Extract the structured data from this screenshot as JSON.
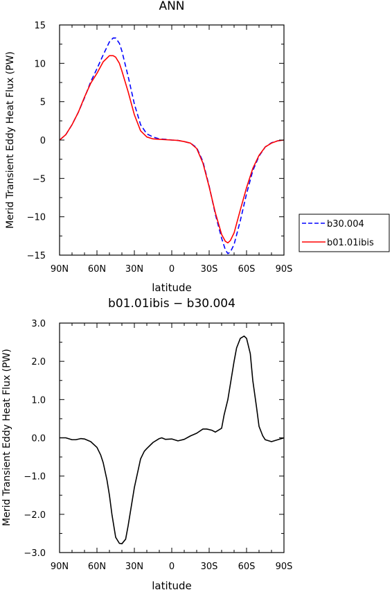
{
  "chart_data": [
    {
      "type": "line",
      "title": "ANN",
      "xlabel": "latitude",
      "ylabel": "Merid Transient Eddy Heat Flux (PW)",
      "xlim": [
        90,
        -90
      ],
      "ylim": [
        -15,
        15
      ],
      "xticks": [
        90,
        60,
        30,
        0,
        -30,
        -60,
        -90
      ],
      "xtick_labels": [
        "90N",
        "60N",
        "30N",
        "0",
        "30S",
        "60S",
        "90S"
      ],
      "yticks": [
        -15,
        -10,
        -5,
        0,
        5,
        10,
        15
      ],
      "ytick_labels": [
        "−15",
        "−10",
        "−5",
        "0",
        "5",
        "10",
        "15"
      ],
      "legend_position": "outside-right",
      "x": [
        90,
        85,
        80,
        75,
        70,
        65,
        60,
        55,
        50,
        47,
        45,
        42,
        40,
        35,
        30,
        25,
        20,
        15,
        10,
        5,
        0,
        -5,
        -10,
        -15,
        -20,
        -25,
        -30,
        -35,
        -40,
        -43,
        -45,
        -47,
        -50,
        -55,
        -60,
        -65,
        -70,
        -75,
        -80,
        -85,
        -90
      ],
      "series": [
        {
          "name": "b30.004",
          "color": "#0000ff",
          "dash": "dashed",
          "values": [
            0.0,
            0.7,
            2.0,
            3.6,
            5.5,
            7.6,
            9.3,
            11.1,
            12.8,
            13.3,
            13.3,
            12.6,
            11.6,
            8.3,
            4.7,
            2.0,
            0.8,
            0.4,
            0.15,
            0.1,
            0.0,
            -0.05,
            -0.2,
            -0.4,
            -1.0,
            -2.8,
            -6.0,
            -9.7,
            -12.8,
            -14.3,
            -14.8,
            -14.6,
            -13.6,
            -10.5,
            -7.0,
            -4.0,
            -2.1,
            -0.9,
            -0.35,
            -0.1,
            0.0
          ]
        },
        {
          "name": "b01.01ibis",
          "color": "#ff0000",
          "dash": "solid",
          "values": [
            0.0,
            0.7,
            2.0,
            3.6,
            5.6,
            7.4,
            8.7,
            10.2,
            11.0,
            11.0,
            10.8,
            10.0,
            9.0,
            6.3,
            3.3,
            1.2,
            0.4,
            0.15,
            0.1,
            0.05,
            0.0,
            -0.05,
            -0.2,
            -0.4,
            -1.1,
            -3.0,
            -6.1,
            -9.5,
            -12.3,
            -13.2,
            -13.4,
            -13.1,
            -12.1,
            -9.1,
            -6.2,
            -3.7,
            -2.0,
            -0.9,
            -0.4,
            -0.1,
            0.0
          ]
        }
      ]
    },
    {
      "type": "line",
      "title": "b01.01ibis − b30.004",
      "xlabel": "latitude",
      "ylabel": "Merid Transient Eddy Heat Flux (PW)",
      "xlim": [
        90,
        -90
      ],
      "ylim": [
        -3.0,
        3.0
      ],
      "xticks": [
        90,
        60,
        30,
        0,
        -30,
        -60,
        -90
      ],
      "xtick_labels": [
        "90N",
        "60N",
        "30N",
        "0",
        "30S",
        "60S",
        "90S"
      ],
      "yticks": [
        -3.0,
        -2.0,
        -1.0,
        0.0,
        1.0,
        2.0,
        3.0
      ],
      "ytick_labels": [
        "−3.0",
        "−2.0",
        "−1.0",
        "0.0",
        "1.0",
        "2.0",
        "3.0"
      ],
      "x": [
        90,
        85,
        80,
        77,
        73,
        70,
        65,
        60,
        57,
        55,
        52,
        50,
        48,
        45,
        42,
        40,
        37,
        35,
        32,
        30,
        27,
        25,
        22,
        20,
        15,
        10,
        8,
        5,
        0,
        -5,
        -10,
        -15,
        -20,
        -25,
        -28,
        -32,
        -35,
        -40,
        -42,
        -45,
        -48,
        -50,
        -52,
        -55,
        -58,
        -60,
        -63,
        -65,
        -68,
        -70,
        -73,
        -75,
        -80,
        -85,
        -90
      ],
      "series": [
        {
          "color": "#000000",
          "dash": "solid",
          "values": [
            0.0,
            0.0,
            -0.05,
            -0.05,
            -0.02,
            -0.03,
            -0.1,
            -0.25,
            -0.45,
            -0.65,
            -1.1,
            -1.5,
            -2.0,
            -2.6,
            -2.76,
            -2.77,
            -2.65,
            -2.3,
            -1.7,
            -1.3,
            -0.85,
            -0.55,
            -0.35,
            -0.28,
            -0.12,
            -0.02,
            0.0,
            -0.04,
            -0.03,
            -0.08,
            -0.04,
            0.05,
            0.12,
            0.23,
            0.23,
            0.2,
            0.15,
            0.25,
            0.6,
            1.0,
            1.6,
            2.0,
            2.35,
            2.6,
            2.66,
            2.6,
            2.2,
            1.5,
            0.8,
            0.3,
            0.05,
            -0.05,
            -0.1,
            -0.05,
            0.0
          ]
        }
      ]
    }
  ]
}
